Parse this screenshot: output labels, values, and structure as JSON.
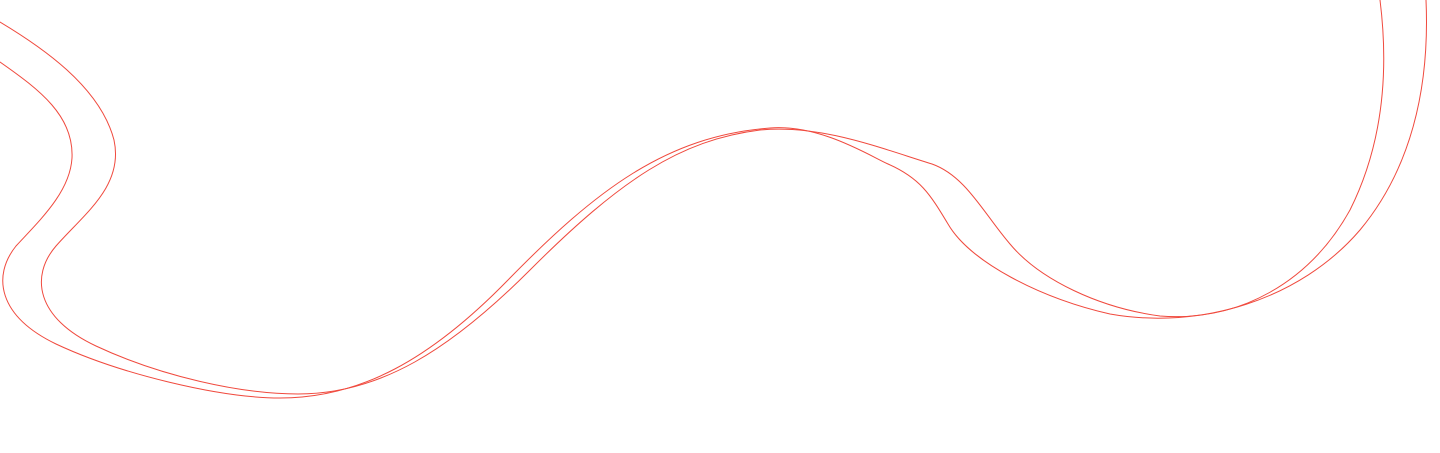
{
  "background_color": "#ffffff",
  "decoration": {
    "type": "double-wave-line",
    "stroke_color": "#f04a3e"
  }
}
